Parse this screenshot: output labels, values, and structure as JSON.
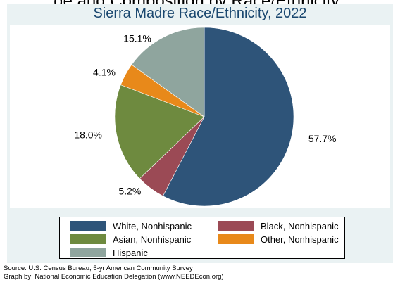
{
  "header": {
    "title": "ge and Composition by Race/Ethnicity"
  },
  "chart_data": {
    "type": "pie",
    "title": "Sierra Madre Race/Ethnicity, 2022",
    "slices": [
      {
        "name": "White, Nonhispanic",
        "value": 57.7,
        "label": "57.7%",
        "color": "#2e5479"
      },
      {
        "name": "Black, Nonhispanic",
        "value": 5.2,
        "label": "5.2%",
        "color": "#9b4a55"
      },
      {
        "name": "Asian, Nonhispanic",
        "value": 18.0,
        "label": "18.0%",
        "color": "#6e8a3f"
      },
      {
        "name": "Other, Nonhispanic",
        "value": 4.1,
        "label": "4.1%",
        "color": "#e8891a"
      },
      {
        "name": "Hispanic",
        "value": 15.1,
        "label": "15.1%",
        "color": "#8fa59e"
      }
    ],
    "legend_placement": "bottom"
  },
  "notes": {
    "source": "Source:  U.S. Census Bureau, 5-yr American Community Survey",
    "graph_by": "Graph by: National Economic Education Delegation (www.NEEDEcon.org)"
  }
}
